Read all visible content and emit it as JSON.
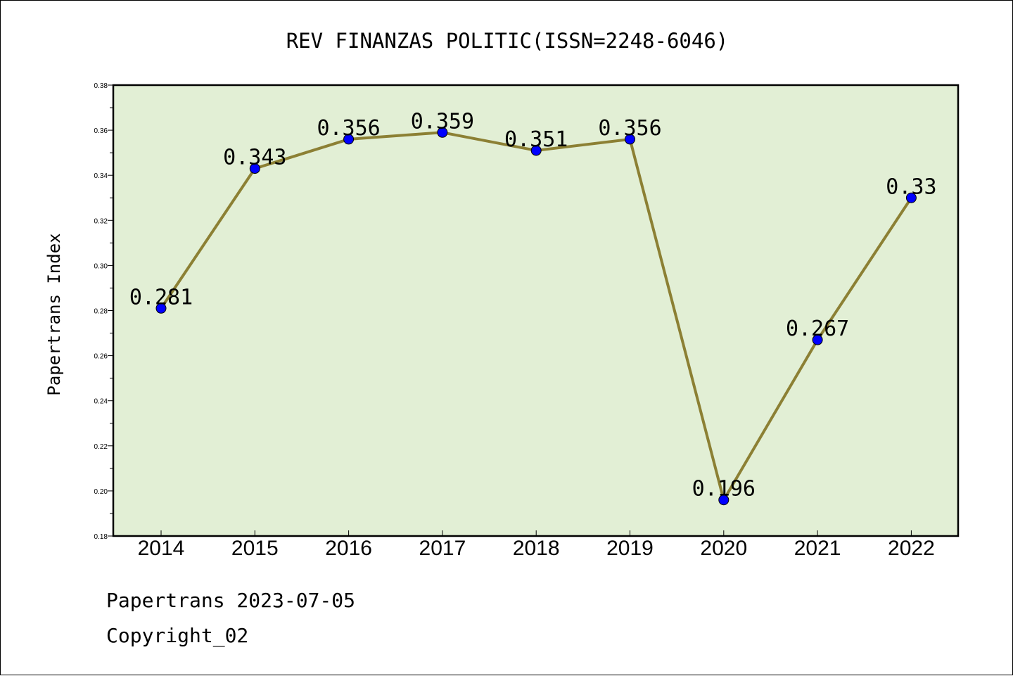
{
  "chart_data": {
    "type": "line",
    "title": "REV FINANZAS POLITIC(ISSN=2248-6046)",
    "xlabel": "",
    "ylabel": "Papertrans Index",
    "categories": [
      "2014",
      "2015",
      "2016",
      "2017",
      "2018",
      "2019",
      "2020",
      "2021",
      "2022"
    ],
    "values": [
      0.281,
      0.343,
      0.356,
      0.359,
      0.351,
      0.356,
      0.196,
      0.267,
      0.33
    ],
    "data_labels": [
      "0.281",
      "0.343",
      "0.356",
      "0.359",
      "0.351",
      "0.356",
      "0.196",
      "0.267",
      "0.33"
    ],
    "ylim": [
      0.18,
      0.38
    ],
    "yticks": [
      "0.18",
      "0.20",
      "0.22",
      "0.24",
      "0.26",
      "0.28",
      "0.30",
      "0.32",
      "0.34",
      "0.36",
      "0.38"
    ],
    "grid": false,
    "legend": "none",
    "colors": {
      "plot_background": "#e2efd5",
      "line": "#8c8034",
      "marker": "#0000ff"
    }
  },
  "footer": {
    "line1": "Papertrans 2023-07-05",
    "line2": "Copyright_02"
  }
}
